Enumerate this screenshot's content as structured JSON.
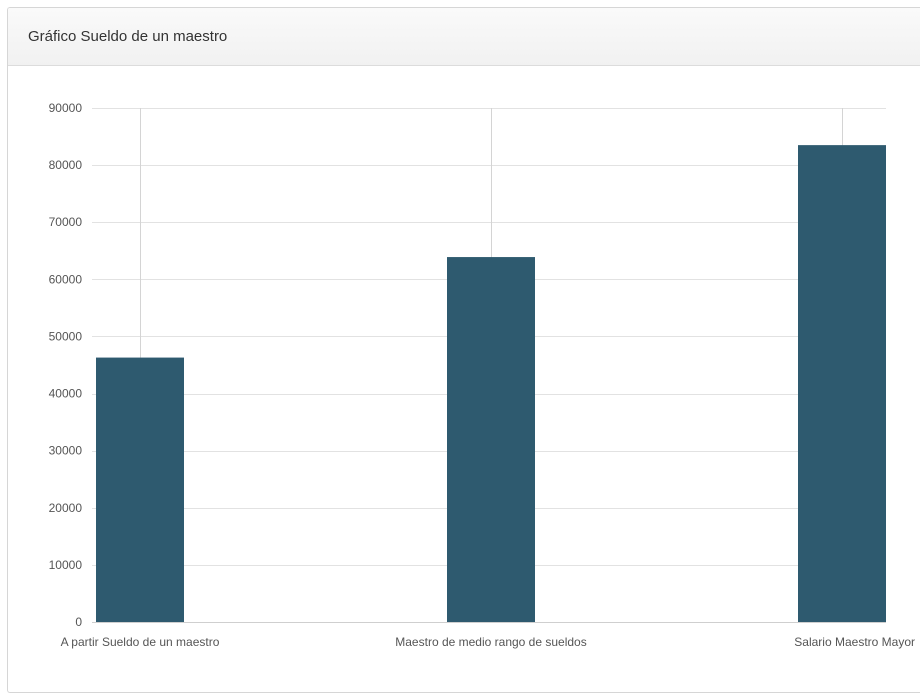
{
  "panel": {
    "title": "Gráfico Sueldo de un maestro"
  },
  "colors": {
    "bar": "#2e5a6f",
    "grid": "#e2e2e2",
    "tick_text": "#555555"
  },
  "chart_data": {
    "type": "bar",
    "title": "",
    "xlabel": "",
    "ylabel": "",
    "categories": [
      "A partir Sueldo de un maestro",
      "Maestro de medio rango de sueldos",
      "Salario Maestro Mayor"
    ],
    "values": [
      46300,
      63900,
      83500
    ],
    "ylim": [
      0,
      90000
    ],
    "yticks": [
      0,
      10000,
      20000,
      30000,
      40000,
      50000,
      60000,
      70000,
      80000,
      90000
    ],
    "grid": true,
    "legend": "none"
  }
}
